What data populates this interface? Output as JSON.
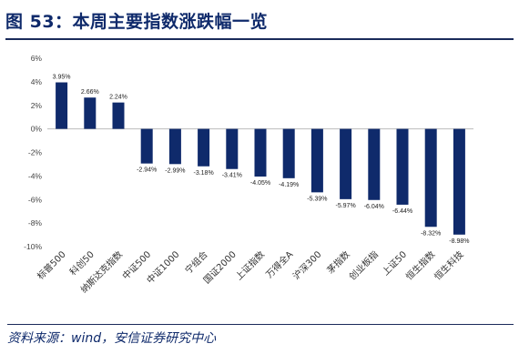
{
  "figure": {
    "title": "图 53：本周主要指数涨跌幅一览",
    "source": "资料来源：wind，安信证券研究中心"
  },
  "chart_data": {
    "type": "bar",
    "categories": [
      "标普500",
      "科创50",
      "纳斯达克指数",
      "中证500",
      "中证1000",
      "宁组合",
      "国证2000",
      "上证指数",
      "万得全A",
      "沪深300",
      "茅指数",
      "创业板指",
      "上证50",
      "恒生指数",
      "恒生科技"
    ],
    "values": [
      3.95,
      2.66,
      2.24,
      -2.94,
      -2.99,
      -3.18,
      -3.41,
      -4.05,
      -4.19,
      -5.39,
      -5.97,
      -6.04,
      -6.44,
      -8.32,
      -8.98
    ],
    "data_labels": [
      "3.95%",
      "2.66%",
      "2.24%",
      "-2.94%",
      "-2.99%",
      "-3.18%",
      "-3.41%",
      "-4.05%",
      "-4.19%",
      "-5.39%",
      "-5.97%",
      "-6.04%",
      "-6.44%",
      "-8.32%",
      "-8.98%"
    ],
    "ylim": [
      -10,
      6
    ],
    "yticks": [
      6,
      4,
      2,
      0,
      -2,
      -4,
      -6,
      -8,
      -10
    ],
    "ytick_labels": [
      "6%",
      "4%",
      "2%",
      "0%",
      "-2%",
      "-4%",
      "-6%",
      "-8%",
      "-10%"
    ],
    "bar_color": "#0f2a6b",
    "grid": false,
    "legend": "none"
  }
}
